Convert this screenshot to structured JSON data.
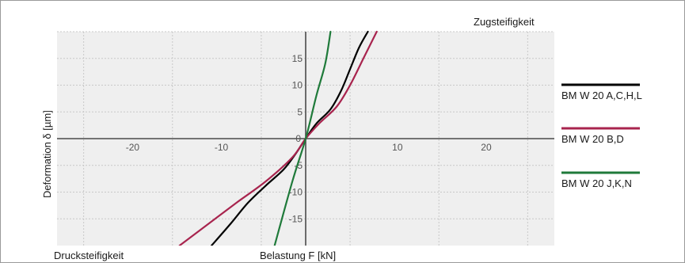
{
  "chart_data": {
    "type": "line",
    "title": "",
    "xlabel": "Belastung F [kN]",
    "ylabel": "Deformation δ [µm]",
    "corner_labels": {
      "top_right": "Zugsteifigkeit",
      "bottom_left": "Drucksteifigkeit"
    },
    "xlim": [
      -28,
      28
    ],
    "ylim": [
      -20,
      20
    ],
    "x_ticks": [
      -20,
      -10,
      10,
      20
    ],
    "y_ticks": [
      -15,
      -10,
      -5,
      5,
      10,
      15
    ],
    "origin_label": "0",
    "grid": true,
    "legend_position": "right",
    "series": [
      {
        "name": "BM W 20 A,C,H,L",
        "color": "#000000",
        "points": [
          [
            -10.6,
            -20
          ],
          [
            -8.5,
            -16
          ],
          [
            -6.5,
            -12
          ],
          [
            -4.5,
            -8.8
          ],
          [
            -2.5,
            -5.8
          ],
          [
            -1.2,
            -3
          ],
          [
            0,
            0
          ],
          [
            1.2,
            2.8
          ],
          [
            2.8,
            5.5
          ],
          [
            4,
            9
          ],
          [
            5,
            13
          ],
          [
            6,
            17
          ],
          [
            7,
            20
          ]
        ]
      },
      {
        "name": "BM W 20 B,D",
        "color": "#a8244e",
        "points": [
          [
            -14.2,
            -20
          ],
          [
            -11,
            -16
          ],
          [
            -7.8,
            -12
          ],
          [
            -4.5,
            -8
          ],
          [
            -1.5,
            -3.5
          ],
          [
            0,
            0
          ],
          [
            1.5,
            2.8
          ],
          [
            3.5,
            6
          ],
          [
            5,
            10
          ],
          [
            6.5,
            15
          ],
          [
            8,
            20
          ]
        ]
      },
      {
        "name": "BM W 20 J,K,N",
        "color": "#1f7a3a",
        "points": [
          [
            -3.5,
            -20
          ],
          [
            -1.5,
            -8
          ],
          [
            0,
            0
          ],
          [
            1.2,
            8
          ],
          [
            2.2,
            14
          ],
          [
            2.8,
            20
          ]
        ]
      }
    ]
  }
}
